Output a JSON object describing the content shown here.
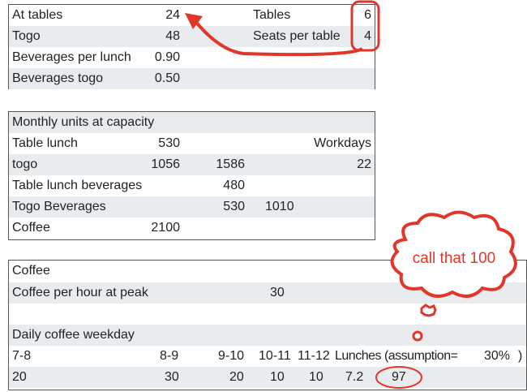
{
  "inputs": {
    "rows": [
      {
        "label": "At tables",
        "value": "24"
      },
      {
        "label": "Togo",
        "value": "48"
      },
      {
        "label": "Beverages per lunch",
        "value": "0.90"
      },
      {
        "label": "Beverages togo",
        "value": "0.50"
      }
    ],
    "tables_label": "Tables",
    "tables_value": "6",
    "seats_label": "Seats per table",
    "seats_value": "4"
  },
  "monthly": {
    "title": "Monthly units at capacity",
    "table_lunch": {
      "label": "Table lunch",
      "v1": "530"
    },
    "workdays_label": "Workdays",
    "togo": {
      "label": "togo",
      "v1": "1056",
      "v2": "1586",
      "v4": "22"
    },
    "table_bev": {
      "label": "Table lunch beverages",
      "v2": "480"
    },
    "togo_bev": {
      "label": "Togo Beverages",
      "v2": "530",
      "v3": "1010"
    },
    "coffee": {
      "label": "Coffee",
      "v1": "2100"
    }
  },
  "coffee": {
    "title": "Coffee",
    "peak_label": "Coffee per hour at peak",
    "peak_value": "30",
    "daily_label": "Daily coffee weekday",
    "hours": [
      "7-8",
      "8-9",
      "9-10",
      "10-11",
      "11-12"
    ],
    "lunches_label": "Lunches (assumption=",
    "assumption": "30%",
    "close_paren": ")",
    "values": [
      "20",
      "30",
      "20",
      "10",
      "10"
    ],
    "lunches_value": "7.2",
    "total": "97"
  },
  "annotations": {
    "cloud_text": "call that 100",
    "color": "#e0372a"
  }
}
